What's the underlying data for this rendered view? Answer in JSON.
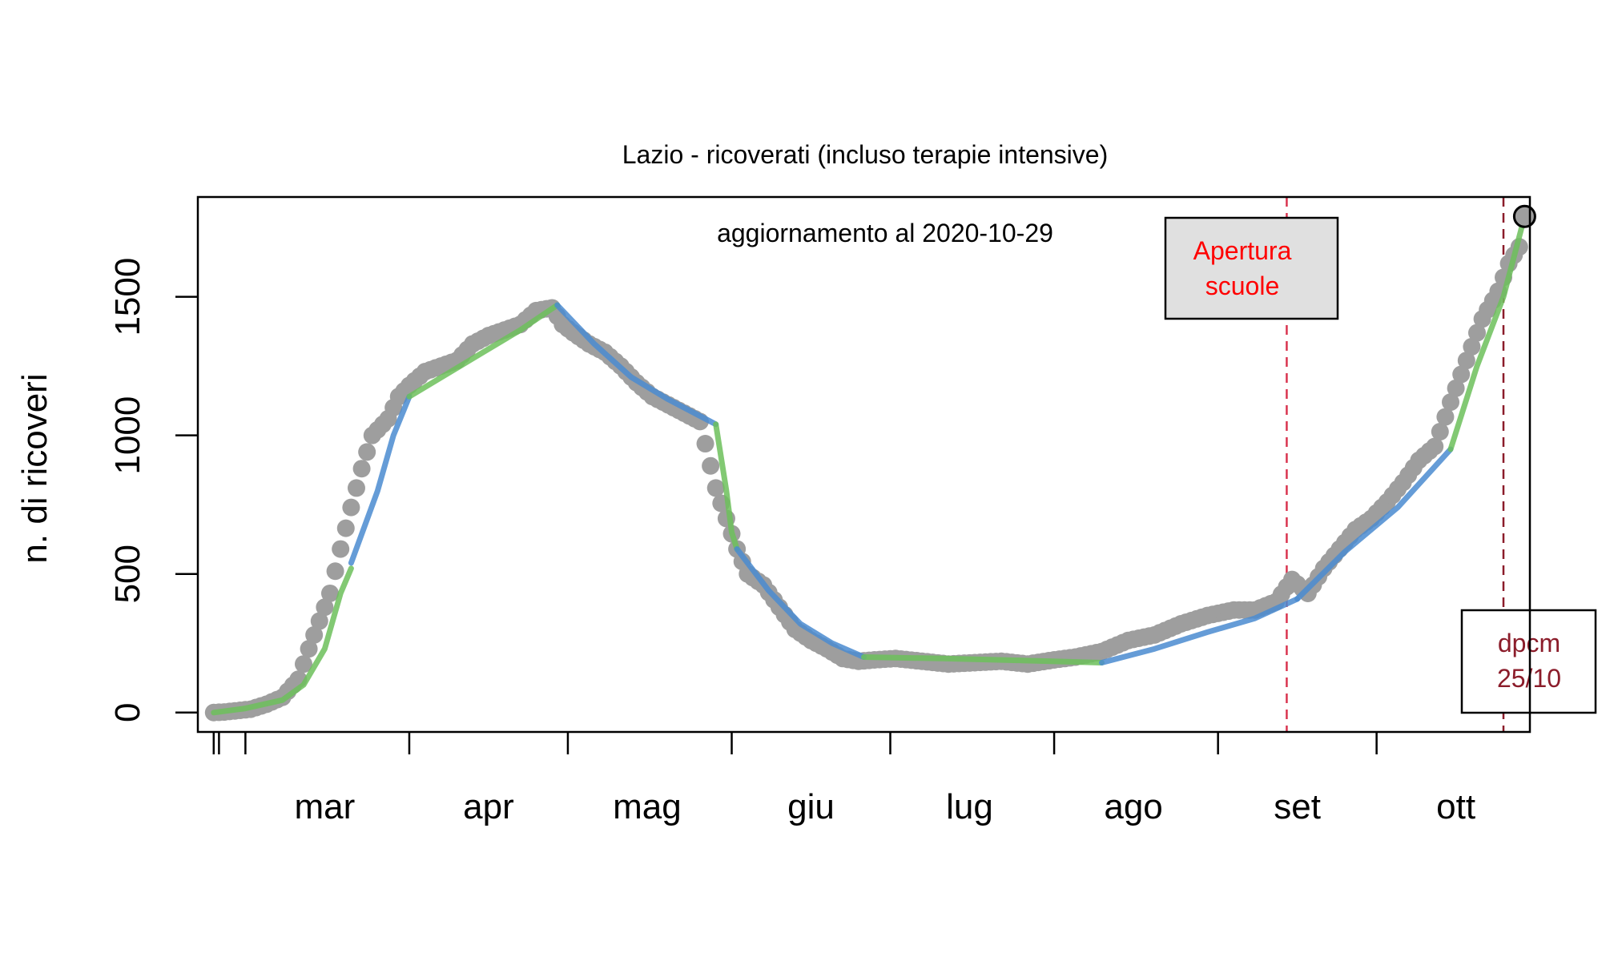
{
  "chart_data": {
    "type": "line",
    "title": "Lazio - ricoverati (incluso terapie intensive)",
    "subtitle": "aggiornamento al 2020-10-29",
    "xlabel": "",
    "ylabel": "n. di ricoveri",
    "x_axis": "date",
    "xlim": [
      "2020-02-21",
      "2020-10-30"
    ],
    "ylim": [
      -70,
      1860
    ],
    "y_ticks": [
      0,
      500,
      1000,
      1500
    ],
    "y_tick_labels": [
      "0",
      "500",
      "1000",
      "1500"
    ],
    "x_tick_dates": [
      "2020-02-24",
      "2020-02-25",
      "2020-03-01",
      "2020-04-01",
      "2020-05-01",
      "2020-06-01",
      "2020-07-01",
      "2020-08-01",
      "2020-09-01",
      "2020-10-01",
      "2020-11-01"
    ],
    "month_labels": [
      {
        "label": "mar",
        "date": "2020-03-16"
      },
      {
        "label": "apr",
        "date": "2020-04-16"
      },
      {
        "label": "mag",
        "date": "2020-05-16"
      },
      {
        "label": "giu",
        "date": "2020-06-16"
      },
      {
        "label": "lug",
        "date": "2020-07-16"
      },
      {
        "label": "ago",
        "date": "2020-08-16"
      },
      {
        "label": "set",
        "date": "2020-09-16"
      },
      {
        "label": "ott",
        "date": "2020-10-16"
      }
    ],
    "grid": false,
    "legend": "none",
    "colors": {
      "points": "#9e9e9e",
      "fit_green": "#6cbf5a",
      "fit_blue": "#4a8bd0",
      "vline_red": "#d9344f",
      "vline_darkred": "#8b1c2a",
      "annotation_red": "#ff0000",
      "annotation_darkred": "#8b1c2a",
      "box_fill_grey": "#e0e0e0",
      "last_point": "#9e9e9e"
    },
    "observed_series": {
      "name": "",
      "x": [
        "2020-02-24",
        "2020-02-26",
        "2020-02-28",
        "2020-03-02",
        "2020-03-05",
        "2020-03-08",
        "2020-03-11",
        "2020-03-13",
        "2020-03-15",
        "2020-03-17",
        "2020-03-19",
        "2020-03-21",
        "2020-03-23",
        "2020-03-25",
        "2020-03-28",
        "2020-03-30",
        "2020-04-01",
        "2020-04-04",
        "2020-04-07",
        "2020-04-10",
        "2020-04-13",
        "2020-04-16",
        "2020-04-19",
        "2020-04-22",
        "2020-04-25",
        "2020-04-28",
        "2020-04-30",
        "2020-05-02",
        "2020-05-05",
        "2020-05-08",
        "2020-05-11",
        "2020-05-14",
        "2020-05-17",
        "2020-05-20",
        "2020-05-23",
        "2020-05-26",
        "2020-05-29",
        "2020-05-31",
        "2020-06-02",
        "2020-06-04",
        "2020-06-07",
        "2020-06-10",
        "2020-06-13",
        "2020-06-16",
        "2020-06-19",
        "2020-06-22",
        "2020-06-25",
        "2020-06-28",
        "2020-07-02",
        "2020-07-07",
        "2020-07-12",
        "2020-07-17",
        "2020-07-22",
        "2020-07-27",
        "2020-08-01",
        "2020-08-05",
        "2020-08-10",
        "2020-08-15",
        "2020-08-20",
        "2020-08-25",
        "2020-08-30",
        "2020-09-04",
        "2020-09-08",
        "2020-09-12",
        "2020-09-15",
        "2020-09-18",
        "2020-09-21",
        "2020-09-24",
        "2020-09-27",
        "2020-09-30",
        "2020-10-03",
        "2020-10-06",
        "2020-10-09",
        "2020-10-12",
        "2020-10-15",
        "2020-10-18",
        "2020-10-21",
        "2020-10-24",
        "2020-10-26",
        "2020-10-28"
      ],
      "y": [
        0,
        2,
        6,
        12,
        30,
        55,
        120,
        230,
        330,
        430,
        590,
        740,
        880,
        1000,
        1060,
        1140,
        1180,
        1230,
        1250,
        1270,
        1330,
        1360,
        1380,
        1400,
        1450,
        1460,
        1400,
        1370,
        1330,
        1300,
        1250,
        1190,
        1140,
        1110,
        1080,
        1050,
        810,
        700,
        590,
        500,
        460,
        380,
        300,
        260,
        230,
        195,
        185,
        190,
        195,
        185,
        175,
        180,
        185,
        175,
        190,
        200,
        220,
        260,
        280,
        320,
        350,
        370,
        370,
        400,
        480,
        430,
        520,
        590,
        660,
        700,
        760,
        830,
        910,
        960,
        1120,
        1270,
        1420,
        1520,
        1620,
        1680
      ]
    },
    "fit_segments": [
      {
        "color": "green",
        "x": [
          "2020-02-24",
          "2020-03-01",
          "2020-03-08",
          "2020-03-12",
          "2020-03-16",
          "2020-03-19",
          "2020-03-21"
        ],
        "y": [
          0,
          15,
          45,
          100,
          230,
          430,
          520
        ]
      },
      {
        "color": "blue",
        "x": [
          "2020-03-21",
          "2020-03-26",
          "2020-03-29",
          "2020-04-01"
        ],
        "y": [
          540,
          800,
          1000,
          1140
        ]
      },
      {
        "color": "green",
        "x": [
          "2020-04-01",
          "2020-04-08",
          "2020-04-15",
          "2020-04-22",
          "2020-04-29"
        ],
        "y": [
          1140,
          1220,
          1300,
          1380,
          1470
        ]
      },
      {
        "color": "blue",
        "x": [
          "2020-04-29",
          "2020-05-06",
          "2020-05-13",
          "2020-05-20",
          "2020-05-29"
        ],
        "y": [
          1470,
          1330,
          1210,
          1130,
          1040
        ]
      },
      {
        "color": "green",
        "x": [
          "2020-05-29",
          "2020-05-31",
          "2020-06-01",
          "2020-06-02"
        ],
        "y": [
          1040,
          800,
          650,
          590
        ]
      },
      {
        "color": "blue",
        "x": [
          "2020-06-02",
          "2020-06-08",
          "2020-06-14",
          "2020-06-20",
          "2020-06-26"
        ],
        "y": [
          590,
          440,
          320,
          250,
          200
        ]
      },
      {
        "color": "green",
        "x": [
          "2020-06-26",
          "2020-07-11",
          "2020-07-26",
          "2020-08-10"
        ],
        "y": [
          200,
          195,
          188,
          180
        ]
      },
      {
        "color": "blue",
        "x": [
          "2020-08-10",
          "2020-08-20",
          "2020-08-30",
          "2020-09-08",
          "2020-09-16"
        ],
        "y": [
          180,
          230,
          290,
          340,
          410
        ]
      },
      {
        "color": "blue",
        "x": [
          "2020-09-16",
          "2020-09-25",
          "2020-10-05",
          "2020-10-15"
        ],
        "y": [
          410,
          580,
          740,
          950
        ]
      },
      {
        "color": "green",
        "x": [
          "2020-10-15",
          "2020-10-20",
          "2020-10-25",
          "2020-10-29"
        ],
        "y": [
          950,
          1250,
          1500,
          1790
        ]
      }
    ],
    "last_point": {
      "x": "2020-10-29",
      "y": 1790
    },
    "vertical_lines": [
      {
        "date": "2020-09-14",
        "color": "red"
      },
      {
        "date": "2020-10-25",
        "color": "darkred"
      }
    ],
    "annotations": [
      {
        "lines": [
          "Apertura",
          "scuole"
        ],
        "color": "red",
        "fill": "grey"
      },
      {
        "lines": [
          "dpcm",
          "25/10"
        ],
        "color": "darkred",
        "fill": "white"
      }
    ]
  }
}
